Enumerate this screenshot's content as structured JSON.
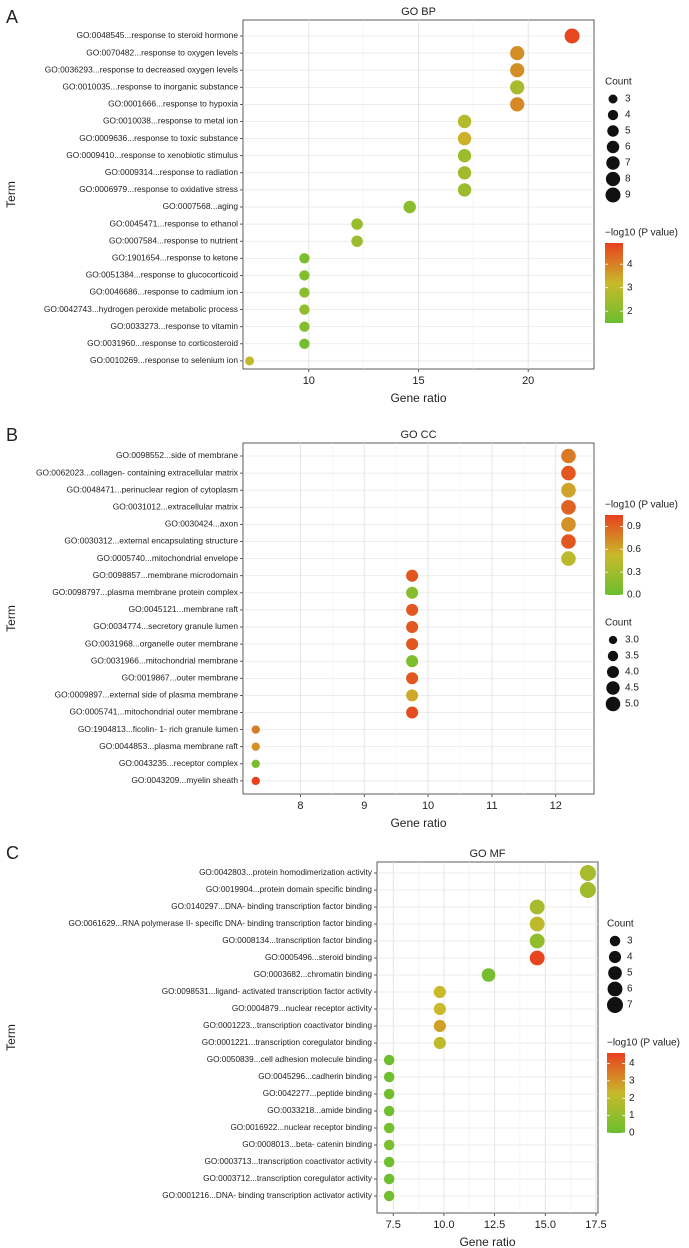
{
  "colors": {
    "low": "#6abf2f",
    "mid": "#c9b92b",
    "high": "#e8401e",
    "grid": "#ececec",
    "panel_bg": "#ffffff",
    "axis": "#333333",
    "text": "#222222"
  },
  "chart_data": [
    {
      "type": "scatter",
      "panel_letter": "A",
      "title": "GO BP",
      "xlabel": "Gene ratio",
      "ylabel": "Term",
      "xlim": [
        7,
        23
      ],
      "xticks": [
        10,
        15,
        20
      ],
      "grid": true,
      "legend_order": [
        "count",
        "color"
      ],
      "count_legend": {
        "title": "Count",
        "values": [
          3,
          4,
          5,
          6,
          7,
          8,
          9
        ],
        "range": [
          1,
          9
        ]
      },
      "color_legend": {
        "title": "−log10 (P value)",
        "ticks": [
          2,
          3,
          4
        ],
        "range": [
          1.5,
          4.9
        ]
      },
      "points": [
        {
          "term": "GO:0048545...response to steroid hormone",
          "x": 22.0,
          "count": 9,
          "p": 4.8
        },
        {
          "term": "GO:0070482...response to oxygen levels",
          "x": 19.5,
          "count": 8,
          "p": 3.8
        },
        {
          "term": "GO:0036293...response to decreased oxygen levels",
          "x": 19.5,
          "count": 8,
          "p": 3.8
        },
        {
          "term": "GO:0010035...response to inorganic substance",
          "x": 19.5,
          "count": 8,
          "p": 2.6
        },
        {
          "term": "GO:0001666...response to hypoxia",
          "x": 19.5,
          "count": 8,
          "p": 3.9
        },
        {
          "term": "GO:0010038...response to metal ion",
          "x": 17.1,
          "count": 7,
          "p": 2.8
        },
        {
          "term": "GO:0009636...response to toxic substance",
          "x": 17.1,
          "count": 7,
          "p": 3.3
        },
        {
          "term": "GO:0009410...response to xenobiotic stimulus",
          "x": 17.1,
          "count": 7,
          "p": 2.4
        },
        {
          "term": "GO:0009314...response to radiation",
          "x": 17.1,
          "count": 7,
          "p": 2.5
        },
        {
          "term": "GO:0006979...response to oxidative stress",
          "x": 17.1,
          "count": 7,
          "p": 2.4
        },
        {
          "term": "GO:0007568...aging",
          "x": 14.6,
          "count": 6,
          "p": 2.1
        },
        {
          "term": "GO:0045471...response to ethanol",
          "x": 12.2,
          "count": 5,
          "p": 2.3
        },
        {
          "term": "GO:0007584...response to nutrient",
          "x": 12.2,
          "count": 5,
          "p": 2.4
        },
        {
          "term": "GO:1901654...response to ketone",
          "x": 9.8,
          "count": 4,
          "p": 1.8
        },
        {
          "term": "GO:0051384...response to glucocorticoid",
          "x": 9.8,
          "count": 4,
          "p": 1.9
        },
        {
          "term": "GO:0046686...response to cadmium ion",
          "x": 9.8,
          "count": 4,
          "p": 2.1
        },
        {
          "term": "GO:0042743...hydrogen peroxide metabolic process",
          "x": 9.8,
          "count": 4,
          "p": 2.2
        },
        {
          "term": "GO:0033273...response to vitamin",
          "x": 9.8,
          "count": 4,
          "p": 2.0
        },
        {
          "term": "GO:0031960...response to corticosteroid",
          "x": 9.8,
          "count": 4,
          "p": 1.7
        },
        {
          "term": "GO:0010269...response to selenium ion",
          "x": 7.3,
          "count": 3,
          "p": 3.0
        }
      ]
    },
    {
      "type": "scatter",
      "panel_letter": "B",
      "title": "GO CC",
      "xlabel": "Gene ratio",
      "ylabel": "Term",
      "xlim": [
        7.1,
        12.6
      ],
      "xticks": [
        8,
        9,
        10,
        11,
        12
      ],
      "grid": true,
      "legend_order": [
        "color",
        "count"
      ],
      "count_legend": {
        "title": "Count",
        "values": [
          "3.0",
          "3.5",
          "4.0",
          "4.5",
          "5.0"
        ],
        "range": [
          2.5,
          5.0
        ]
      },
      "color_legend": {
        "title": "−log10 (P value)",
        "ticks": [
          "0.0",
          "0.3",
          "0.6",
          "0.9"
        ],
        "range": [
          0.0,
          1.05
        ]
      },
      "points": [
        {
          "term": "GO:0098552...side of membrane",
          "x": 12.2,
          "count": 5,
          "p": 0.8
        },
        {
          "term": "GO:0062023...collagen- containing extracellular matrix",
          "x": 12.2,
          "count": 5,
          "p": 0.95
        },
        {
          "term": "GO:0048471...perinuclear region of cytoplasm",
          "x": 12.2,
          "count": 5,
          "p": 0.62
        },
        {
          "term": "GO:0031012...extracellular matrix",
          "x": 12.2,
          "count": 5,
          "p": 0.9
        },
        {
          "term": "GO:0030424...axon",
          "x": 12.2,
          "count": 5,
          "p": 0.7
        },
        {
          "term": "GO:0030312...external encapsulating structure",
          "x": 12.2,
          "count": 5,
          "p": 0.95
        },
        {
          "term": "GO:0005740...mitochondrial envelope",
          "x": 12.2,
          "count": 5,
          "p": 0.45
        },
        {
          "term": "GO:0098857...membrane microdomain",
          "x": 9.75,
          "count": 4,
          "p": 0.95
        },
        {
          "term": "GO:0098797...plasma membrane protein complex",
          "x": 9.75,
          "count": 4,
          "p": 0.15
        },
        {
          "term": "GO:0045121...membrane raft",
          "x": 9.75,
          "count": 4,
          "p": 0.95
        },
        {
          "term": "GO:0034774...secretory granule lumen",
          "x": 9.75,
          "count": 4,
          "p": 0.95
        },
        {
          "term": "GO:0031968...organelle outer membrane",
          "x": 9.75,
          "count": 4,
          "p": 0.95
        },
        {
          "term": "GO:0031966...mitochondrial membrane",
          "x": 9.75,
          "count": 4,
          "p": 0.1
        },
        {
          "term": "GO:0019867...outer membrane",
          "x": 9.75,
          "count": 4,
          "p": 0.95
        },
        {
          "term": "GO:0009897...external side of plasma membrane",
          "x": 9.75,
          "count": 4,
          "p": 0.6
        },
        {
          "term": "GO:0005741...mitochondrial outer membrane",
          "x": 9.75,
          "count": 4,
          "p": 1.0
        },
        {
          "term": "GO:1904813...ficolin- 1- rich granule lumen",
          "x": 7.3,
          "count": 3,
          "p": 0.8
        },
        {
          "term": "GO:0044853...plasma membrane raft",
          "x": 7.3,
          "count": 3,
          "p": 0.7
        },
        {
          "term": "GO:0043235...receptor complex",
          "x": 7.3,
          "count": 3,
          "p": 0.1
        },
        {
          "term": "GO:0043209...myelin sheath",
          "x": 7.3,
          "count": 3,
          "p": 1.05
        }
      ]
    },
    {
      "type": "scatter",
      "panel_letter": "C",
      "title": "GO MF",
      "xlabel": "Gene ratio",
      "ylabel": "Term",
      "xlim": [
        6.7,
        17.6
      ],
      "xticks": [
        "7.5",
        "10.0",
        "12.5",
        "15.0",
        "17.5"
      ],
      "grid": true,
      "legend_order": [
        "count",
        "color"
      ],
      "count_legend": {
        "title": "Count",
        "values": [
          3,
          4,
          5,
          6,
          7
        ],
        "range": [
          1,
          7
        ]
      },
      "color_legend": {
        "title": "−log10 (P value)",
        "ticks": [
          0,
          1,
          2,
          3,
          4
        ],
        "range": [
          0,
          4.6
        ]
      },
      "points": [
        {
          "term": "GO:0042803...protein homodimerization activity",
          "x": 17.1,
          "count": 7,
          "p": 1.5
        },
        {
          "term": "GO:0019904...protein domain specific binding",
          "x": 17.1,
          "count": 7,
          "p": 1.3
        },
        {
          "term": "GO:0140297...DNA- binding transcription factor binding",
          "x": 14.6,
          "count": 6,
          "p": 1.5
        },
        {
          "term": "GO:0061629...RNA polymerase II- specific DNA- binding transcription factor binding",
          "x": 14.6,
          "count": 6,
          "p": 2.0
        },
        {
          "term": "GO:0008134...transcription factor binding",
          "x": 14.6,
          "count": 6,
          "p": 1.0
        },
        {
          "term": "GO:0005496...steroid binding",
          "x": 14.6,
          "count": 6,
          "p": 4.5
        },
        {
          "term": "GO:0003682...chromatin binding",
          "x": 12.2,
          "count": 5,
          "p": 0.3
        },
        {
          "term": "GO:0098531...ligand- activated transcription factor activity",
          "x": 9.8,
          "count": 4,
          "p": 2.3
        },
        {
          "term": "GO:0004879...nuclear receptor activity",
          "x": 9.8,
          "count": 4,
          "p": 2.3
        },
        {
          "term": "GO:0001223...transcription coactivator binding",
          "x": 9.8,
          "count": 4,
          "p": 2.8
        },
        {
          "term": "GO:0001221...transcription coregulator binding",
          "x": 9.8,
          "count": 4,
          "p": 2.0
        },
        {
          "term": "GO:0050839...cell adhesion molecule binding",
          "x": 7.3,
          "count": 3,
          "p": 0.1
        },
        {
          "term": "GO:0045296...cadherin binding",
          "x": 7.3,
          "count": 3,
          "p": 0.1
        },
        {
          "term": "GO:0042277...peptide binding",
          "x": 7.3,
          "count": 3,
          "p": 0.2
        },
        {
          "term": "GO:0033218...amide binding",
          "x": 7.3,
          "count": 3,
          "p": 0.2
        },
        {
          "term": "GO:0016922...nuclear receptor binding",
          "x": 7.3,
          "count": 3,
          "p": 0.3
        },
        {
          "term": "GO:0008013...beta- catenin binding",
          "x": 7.3,
          "count": 3,
          "p": 0.4
        },
        {
          "term": "GO:0003713...transcription coactivator activity",
          "x": 7.3,
          "count": 3,
          "p": 0.1
        },
        {
          "term": "GO:0003712...transcription coregulator activity",
          "x": 7.3,
          "count": 3,
          "p": 0.1
        },
        {
          "term": "GO:0001216...DNA- binding transcription activator activity",
          "x": 7.3,
          "count": 3,
          "p": 0.2
        }
      ]
    }
  ]
}
